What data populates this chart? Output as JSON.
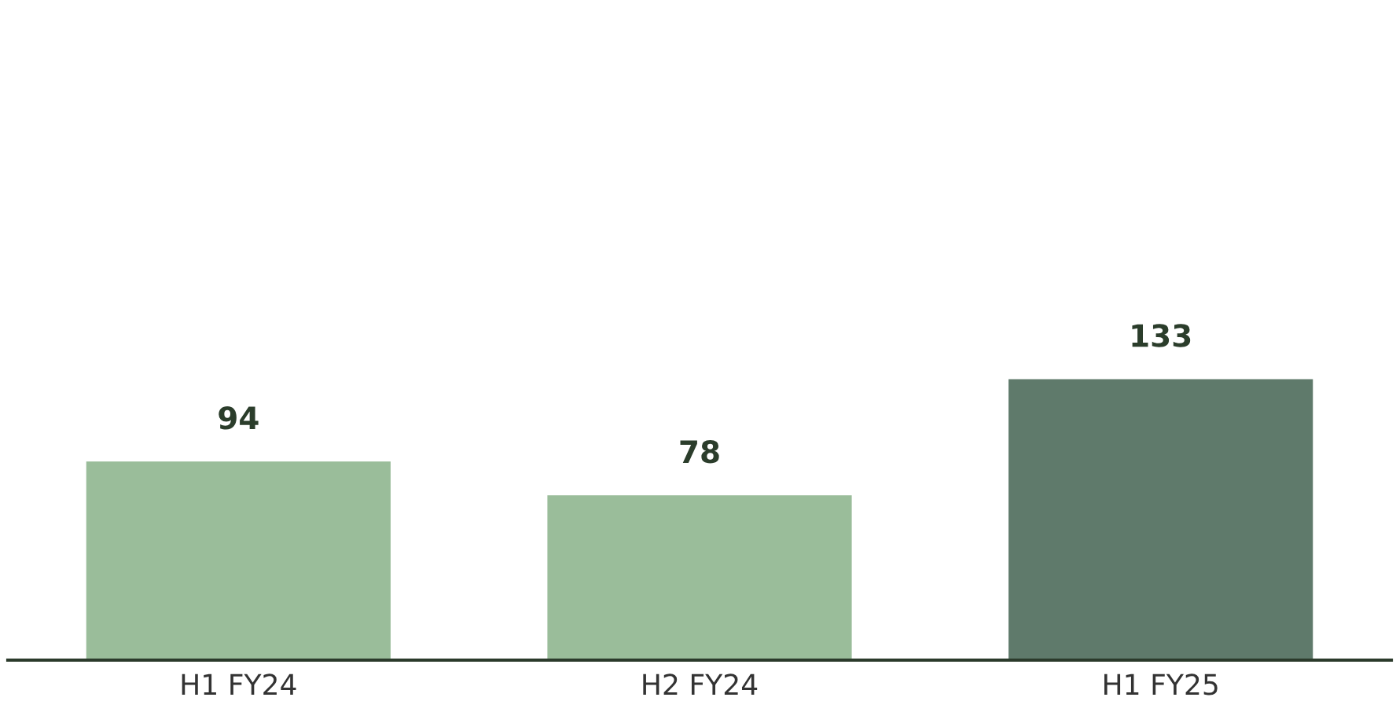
{
  "chart_data": {
    "type": "bar",
    "categories": [
      "H1 FY24",
      "H2 FY24",
      "H1 FY25"
    ],
    "values": [
      94,
      78,
      133
    ],
    "colors": [
      "#9abd9a",
      "#9abd9a",
      "#5f7a6b"
    ],
    "data_labels": true,
    "grid": false,
    "legend": false,
    "tick_labels": "x"
  }
}
